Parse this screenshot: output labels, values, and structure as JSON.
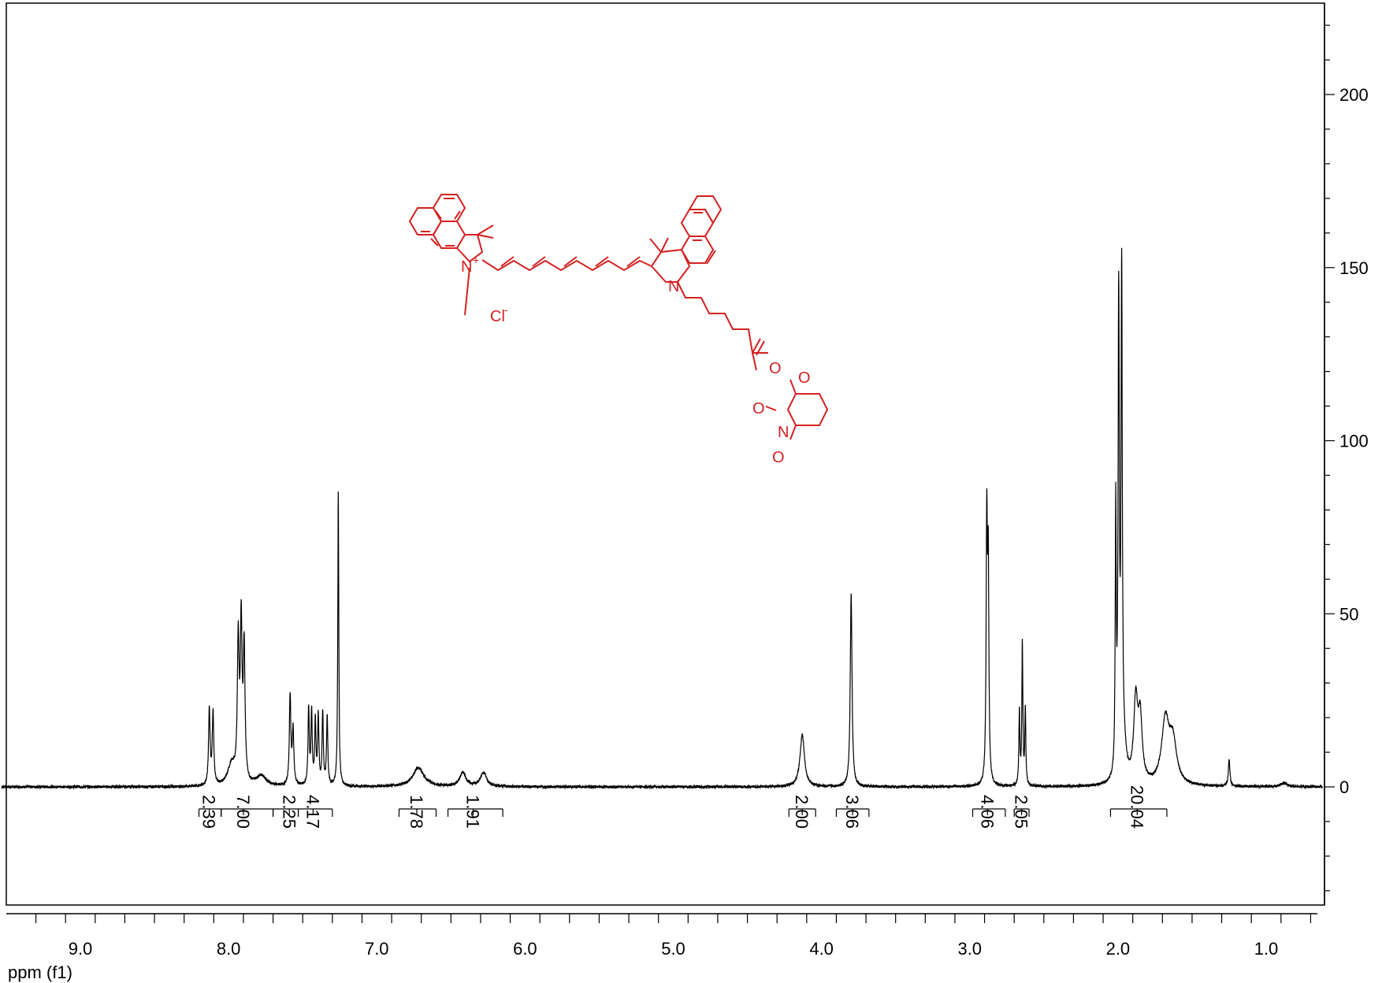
{
  "chart_data": {
    "type": "line",
    "xlabel": "ppm (f1)",
    "ylabel": "",
    "xlim": [
      9.53,
      0.62
    ],
    "ylim": [
      -35,
      225
    ],
    "x_ticks": [
      "9.0",
      "8.0",
      "7.0",
      "6.0",
      "5.0",
      "4.0",
      "3.0",
      "2.0",
      "1.0"
    ],
    "x_tick_values": [
      9.0,
      8.0,
      7.0,
      6.0,
      5.0,
      4.0,
      3.0,
      2.0,
      1.0
    ],
    "y_ticks": [
      "0",
      "50",
      "100",
      "150",
      "200"
    ],
    "y_tick_values": [
      0,
      50,
      100,
      150,
      200
    ],
    "peaks": [
      {
        "ppm": 8.13,
        "h": 22,
        "w": 0.006
      },
      {
        "ppm": 8.105,
        "h": 21,
        "w": 0.006
      },
      {
        "ppm": 7.98,
        "h": 6,
        "w": 0.03
      },
      {
        "ppm": 7.78,
        "h": 3,
        "w": 0.04
      },
      {
        "ppm": 7.935,
        "h": 40,
        "w": 0.007
      },
      {
        "ppm": 7.915,
        "h": 44,
        "w": 0.007
      },
      {
        "ppm": 7.895,
        "h": 38,
        "w": 0.007
      },
      {
        "ppm": 7.585,
        "h": 26,
        "w": 0.006
      },
      {
        "ppm": 7.565,
        "h": 16,
        "w": 0.006
      },
      {
        "ppm": 7.46,
        "h": 22,
        "w": 0.005
      },
      {
        "ppm": 7.44,
        "h": 21,
        "w": 0.005
      },
      {
        "ppm": 7.415,
        "h": 18,
        "w": 0.005
      },
      {
        "ppm": 7.395,
        "h": 20,
        "w": 0.005
      },
      {
        "ppm": 7.365,
        "h": 21,
        "w": 0.005
      },
      {
        "ppm": 7.335,
        "h": 20,
        "w": 0.005
      },
      {
        "ppm": 7.26,
        "h": 85,
        "w": 0.004
      },
      {
        "ppm": 6.72,
        "h": 5.5,
        "w": 0.045
      },
      {
        "ppm": 6.42,
        "h": 4,
        "w": 0.025
      },
      {
        "ppm": 6.28,
        "h": 4,
        "w": 0.025
      },
      {
        "ppm": 4.13,
        "h": 15,
        "w": 0.018
      },
      {
        "ppm": 3.8,
        "h": 56,
        "w": 0.007
      },
      {
        "ppm": 2.885,
        "h": 74,
        "w": 0.005
      },
      {
        "ppm": 2.875,
        "h": 60,
        "w": 0.005
      },
      {
        "ppm": 2.665,
        "h": 21,
        "w": 0.004
      },
      {
        "ppm": 2.645,
        "h": 41,
        "w": 0.004
      },
      {
        "ppm": 2.625,
        "h": 22,
        "w": 0.004
      },
      {
        "ppm": 2.015,
        "h": 76,
        "w": 0.004
      },
      {
        "ppm": 1.995,
        "h": 135,
        "w": 0.005
      },
      {
        "ppm": 1.975,
        "h": 141,
        "w": 0.005
      },
      {
        "ppm": 1.96,
        "h": 8,
        "w": 0.02
      },
      {
        "ppm": 1.88,
        "h": 23,
        "w": 0.016
      },
      {
        "ppm": 1.85,
        "h": 18,
        "w": 0.016
      },
      {
        "ppm": 1.68,
        "h": 18,
        "w": 0.03
      },
      {
        "ppm": 1.63,
        "h": 12,
        "w": 0.03
      },
      {
        "ppm": 1.25,
        "h": 8,
        "w": 0.006
      },
      {
        "ppm": 0.88,
        "h": 1,
        "w": 0.03
      }
    ],
    "integrals": [
      {
        "label": "2.39",
        "from": 8.2,
        "to": 8.05,
        "label_ppm": 8.13
      },
      {
        "label": "7.00",
        "from": 8.05,
        "to": 7.7,
        "label_ppm": 7.9
      },
      {
        "label": "2.25",
        "from": 7.7,
        "to": 7.53,
        "label_ppm": 7.59
      },
      {
        "label": "4.17",
        "from": 7.53,
        "to": 7.3,
        "label_ppm": 7.43
      },
      {
        "label": "1.78",
        "from": 6.85,
        "to": 6.6,
        "label_ppm": 6.73
      },
      {
        "label": "1.91",
        "from": 6.52,
        "to": 6.15,
        "label_ppm": 6.35
      },
      {
        "label": "2.00",
        "from": 4.22,
        "to": 4.04,
        "label_ppm": 4.13
      },
      {
        "label": "3.06",
        "from": 3.9,
        "to": 3.68,
        "label_ppm": 3.79
      },
      {
        "label": "4.06",
        "from": 2.98,
        "to": 2.76,
        "label_ppm": 2.88
      },
      {
        "label": "2.05",
        "from": 2.7,
        "to": 2.6,
        "label_ppm": 2.65
      },
      {
        "label": "20.04",
        "from": 2.05,
        "to": 1.67,
        "label_ppm": 1.87
      }
    ]
  },
  "molecule": {
    "counter_ion": "Cl",
    "counter_ion_charge": "-",
    "atom_N": "N",
    "atom_N_charge": "+",
    "atom_O": "O",
    "color": "#d42020"
  }
}
